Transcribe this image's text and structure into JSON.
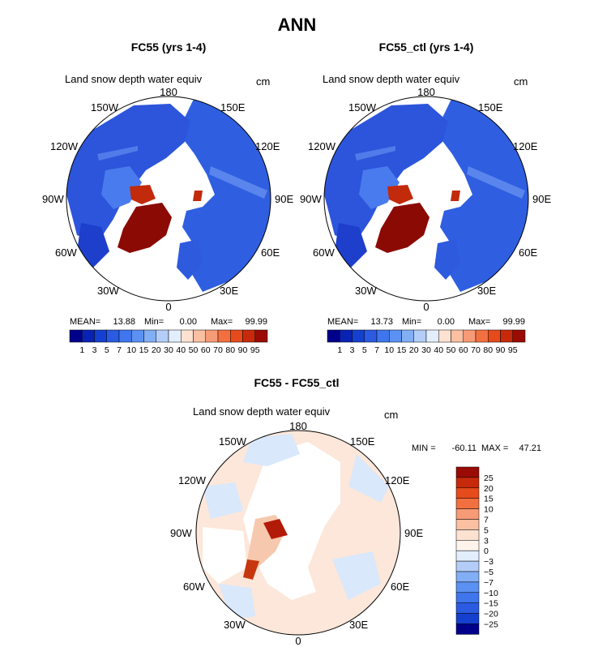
{
  "page_title": "ANN",
  "chart_data": [
    {
      "type": "heatmap",
      "projection": "north-polar-stereographic",
      "title": "FC55 (yrs 1-4)",
      "variable": "Land snow depth water equiv",
      "units": "cm",
      "longitude_labels": [
        "180",
        "150E",
        "120E",
        "90E",
        "60E",
        "30E",
        "0",
        "30W",
        "60W",
        "90W",
        "120W",
        "150W"
      ],
      "stats": {
        "mean_label": "MEAN=",
        "mean": "13.88",
        "min_label": "Min=",
        "min": "0.00",
        "max_label": "Max=",
        "max": "99.99"
      },
      "colorbar_labels": [
        "1",
        "3",
        "5",
        "7",
        "10",
        "15",
        "20",
        "30",
        "40",
        "50",
        "60",
        "70",
        "80",
        "90",
        "95"
      ],
      "colorbar_colors": [
        "#00008B",
        "#0A22B4",
        "#1540CF",
        "#2A5BE2",
        "#3F76EE",
        "#5B91F2",
        "#82AEF5",
        "#B3CDF8",
        "#E3EEFC",
        "#FDE2D2",
        "#FBBFA2",
        "#F79A76",
        "#F2703F",
        "#E64B1C",
        "#C72A0B",
        "#9A0B05"
      ]
    },
    {
      "type": "heatmap",
      "projection": "north-polar-stereographic",
      "title": "FC55_ctl (yrs 1-4)",
      "variable": "Land snow depth water equiv",
      "units": "cm",
      "longitude_labels": [
        "180",
        "150E",
        "120E",
        "90E",
        "60E",
        "30E",
        "0",
        "30W",
        "60W",
        "90W",
        "120W",
        "150W"
      ],
      "stats": {
        "mean_label": "MEAN=",
        "mean": "13.73",
        "min_label": "Min=",
        "min": "0.00",
        "max_label": "Max=",
        "max": "99.99"
      },
      "colorbar_labels": [
        "1",
        "3",
        "5",
        "7",
        "10",
        "15",
        "20",
        "30",
        "40",
        "50",
        "60",
        "70",
        "80",
        "90",
        "95"
      ],
      "colorbar_colors": [
        "#00008B",
        "#0A22B4",
        "#1540CF",
        "#2A5BE2",
        "#3F76EE",
        "#5B91F2",
        "#82AEF5",
        "#B3CDF8",
        "#E3EEFC",
        "#FDE2D2",
        "#FBBFA2",
        "#F79A76",
        "#F2703F",
        "#E64B1C",
        "#C72A0B",
        "#9A0B05"
      ]
    },
    {
      "type": "heatmap",
      "projection": "north-polar-stereographic",
      "title": "FC55 - FC55_ctl",
      "variable": "Land snow depth water equiv",
      "units": "cm",
      "longitude_labels": [
        "180",
        "150E",
        "120E",
        "90E",
        "60E",
        "30E",
        "0",
        "30W",
        "60W",
        "90W",
        "120W",
        "150W"
      ],
      "stats": {
        "min_label": "MIN =",
        "min": "-60.11",
        "max_label": "MAX =",
        "max": "47.21"
      },
      "colorbar_labels": [
        "25",
        "20",
        "15",
        "10",
        "7",
        "5",
        "3",
        "0",
        "−3",
        "−5",
        "−7",
        "−10",
        "−15",
        "−20",
        "−25"
      ],
      "colorbar_colors": [
        "#9A0B05",
        "#C72A0B",
        "#E64B1C",
        "#F2703F",
        "#F79A76",
        "#FBBFA2",
        "#FDE2D2",
        "#FFF4EC",
        "#E3EEFC",
        "#B3CDF8",
        "#82AEF5",
        "#5B91F2",
        "#3F76EE",
        "#2A5BE2",
        "#1540CF",
        "#00008B"
      ]
    }
  ]
}
